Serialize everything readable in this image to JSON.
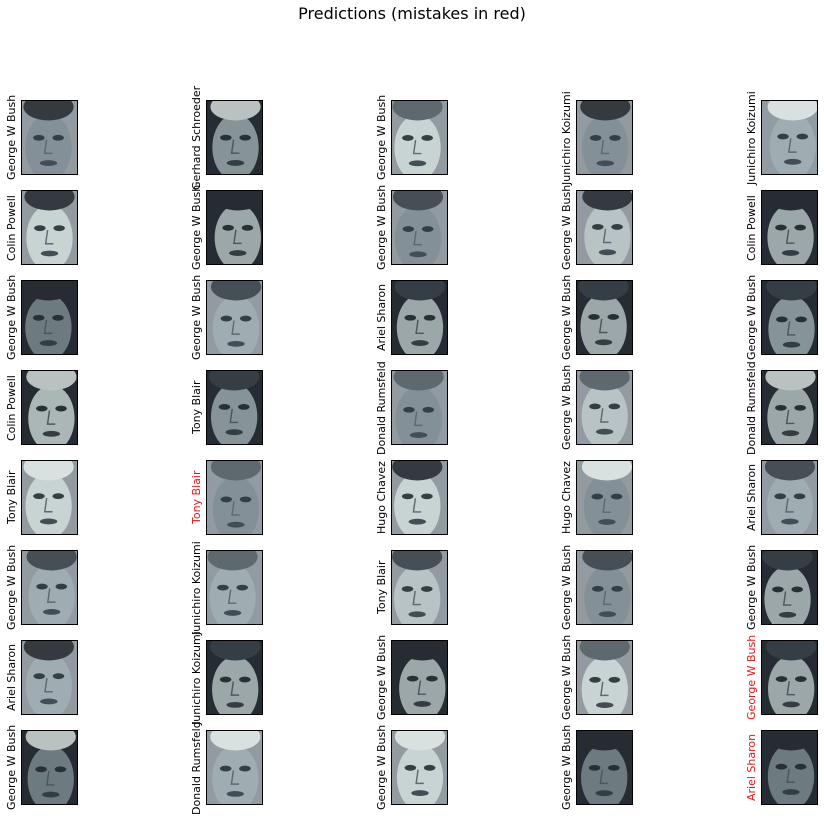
{
  "title": "Predictions (mistakes in red)",
  "colors": {
    "mistake": "#e0181c",
    "correct": "#000000"
  },
  "rows": [
    [
      {
        "label": "George W Bush",
        "mistake": false
      },
      {
        "label": "Gerhard Schroeder",
        "mistake": false
      },
      {
        "label": "George W Bush",
        "mistake": false
      },
      {
        "label": "Junichiro Koizumi",
        "mistake": false
      },
      {
        "label": "Junichiro Koizumi",
        "mistake": false
      }
    ],
    [
      {
        "label": "Colin Powell",
        "mistake": false
      },
      {
        "label": "George W Bush",
        "mistake": false
      },
      {
        "label": "George W Bush",
        "mistake": false
      },
      {
        "label": "George W Bush",
        "mistake": false
      },
      {
        "label": "Colin Powell",
        "mistake": false
      }
    ],
    [
      {
        "label": "George W Bush",
        "mistake": false
      },
      {
        "label": "George W Bush",
        "mistake": false
      },
      {
        "label": "Ariel Sharon",
        "mistake": false
      },
      {
        "label": "George W Bush",
        "mistake": false
      },
      {
        "label": "George W Bush",
        "mistake": false
      }
    ],
    [
      {
        "label": "Colin Powell",
        "mistake": false
      },
      {
        "label": "Tony Blair",
        "mistake": false
      },
      {
        "label": "Donald Rumsfeld",
        "mistake": false
      },
      {
        "label": "George W Bush",
        "mistake": false
      },
      {
        "label": "Donald Rumsfeld",
        "mistake": false
      }
    ],
    [
      {
        "label": "Tony Blair",
        "mistake": false
      },
      {
        "label": "Tony Blair",
        "mistake": true
      },
      {
        "label": "Hugo Chavez",
        "mistake": false
      },
      {
        "label": "Hugo Chavez",
        "mistake": false
      },
      {
        "label": "Ariel Sharon",
        "mistake": false
      }
    ],
    [
      {
        "label": "George W Bush",
        "mistake": false
      },
      {
        "label": "Junichiro Koizumi",
        "mistake": false
      },
      {
        "label": "Tony Blair",
        "mistake": false
      },
      {
        "label": "George W Bush",
        "mistake": false
      },
      {
        "label": "George W Bush",
        "mistake": false
      }
    ],
    [
      {
        "label": "Ariel Sharon",
        "mistake": false
      },
      {
        "label": "Junichiro Koizumi",
        "mistake": false
      },
      {
        "label": "George W Bush",
        "mistake": false
      },
      {
        "label": "George W Bush",
        "mistake": false
      },
      {
        "label": "George W Bush",
        "mistake": true
      }
    ],
    [
      {
        "label": "George W Bush",
        "mistake": false
      },
      {
        "label": "Donald Rumsfeld",
        "mistake": false
      },
      {
        "label": "George W Bush",
        "mistake": false
      },
      {
        "label": "George W Bush",
        "mistake": false
      },
      {
        "label": "Ariel Sharon",
        "mistake": true
      }
    ]
  ]
}
